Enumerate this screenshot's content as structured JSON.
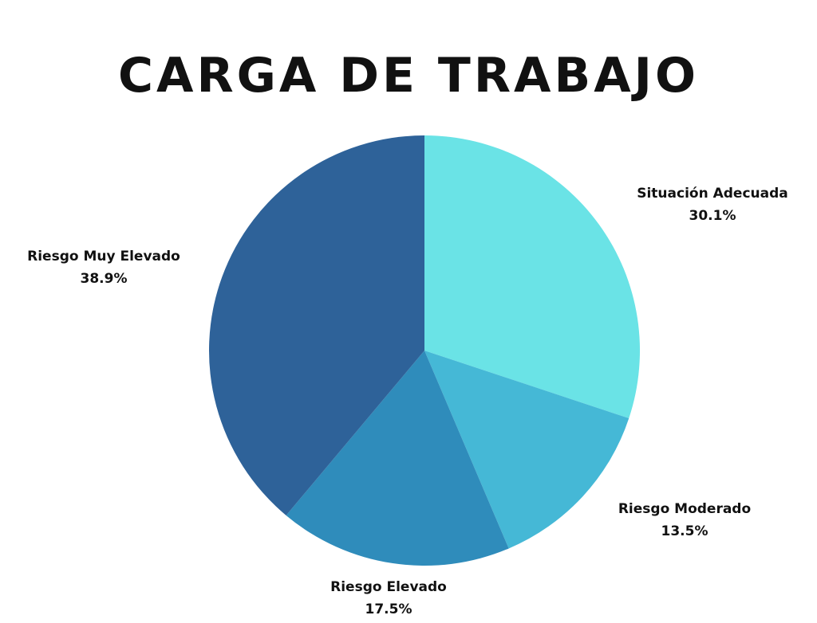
{
  "chart_data": {
    "type": "pie",
    "title": "CARGA DE TRABAJO",
    "slices": [
      {
        "label": "Situación Adecuada",
        "value": 30.1,
        "value_label": "30.1%",
        "color": "#6ae3e6"
      },
      {
        "label": "Riesgo Moderado",
        "value": 13.5,
        "value_label": "13.5%",
        "color": "#45b8d6"
      },
      {
        "label": "Riesgo Elevado",
        "value": 17.5,
        "value_label": "17.5%",
        "color": "#2f8cbb"
      },
      {
        "label": "Riesgo Muy Elevado",
        "value": 38.9,
        "value_label": "38.9%",
        "color": "#2e6299"
      }
    ],
    "start": "top",
    "direction": "clockwise"
  }
}
